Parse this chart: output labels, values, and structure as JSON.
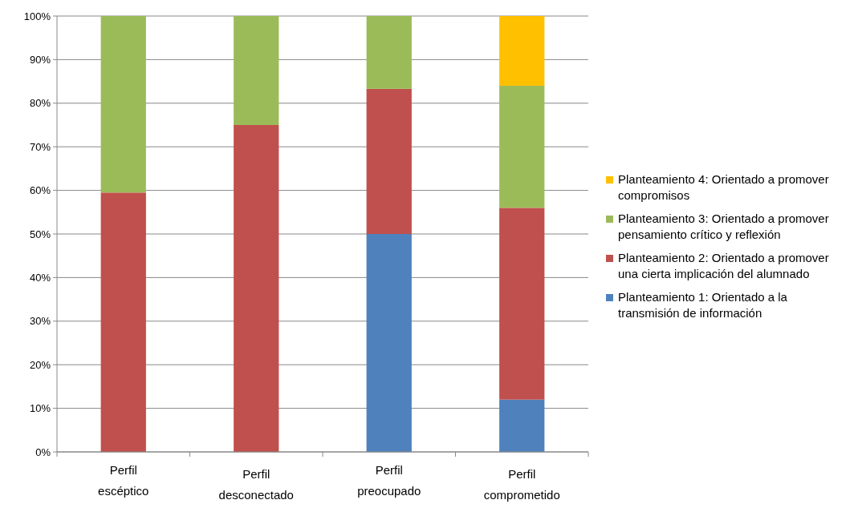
{
  "chart_data": {
    "type": "bar",
    "stacked": true,
    "categories": [
      "Perfil escéptico",
      "Perfil desconectado",
      "Perfil preocupado",
      "Perfil comprometido"
    ],
    "series": [
      {
        "name": "Planteamiento 1: Orientado a la transmisión de información",
        "color": "#4f81bd",
        "values": [
          0,
          0,
          50,
          12
        ]
      },
      {
        "name": "Planteamiento 2: Orientado a promover una cierta implicación del alumnado",
        "color": "#c0504d",
        "values": [
          59.5,
          75,
          33.3,
          44
        ]
      },
      {
        "name": "Planteamiento 3: Orientado a promover pensamiento crítico y reflexión",
        "color": "#9bbb59",
        "values": [
          40.5,
          25,
          16.7,
          28
        ]
      },
      {
        "name": "Planteamiento 4: Orientado a promover compromisos",
        "color": "#ffc000",
        "values": [
          0,
          0,
          0,
          16
        ]
      }
    ],
    "ylim": [
      0,
      100
    ],
    "yticks": [
      {
        "value": 0,
        "label": "0%"
      },
      {
        "value": 10,
        "label": "10%"
      },
      {
        "value": 20,
        "label": "20%"
      },
      {
        "value": 30,
        "label": "30%"
      },
      {
        "value": 40,
        "label": "40%"
      },
      {
        "value": 50,
        "label": "50%"
      },
      {
        "value": 60,
        "label": "60%"
      },
      {
        "value": 70,
        "label": "70%"
      },
      {
        "value": 80,
        "label": "80%"
      },
      {
        "value": 90,
        "label": "90%"
      },
      {
        "value": 100,
        "label": "100%"
      }
    ],
    "grid": "y",
    "legend": "right"
  }
}
